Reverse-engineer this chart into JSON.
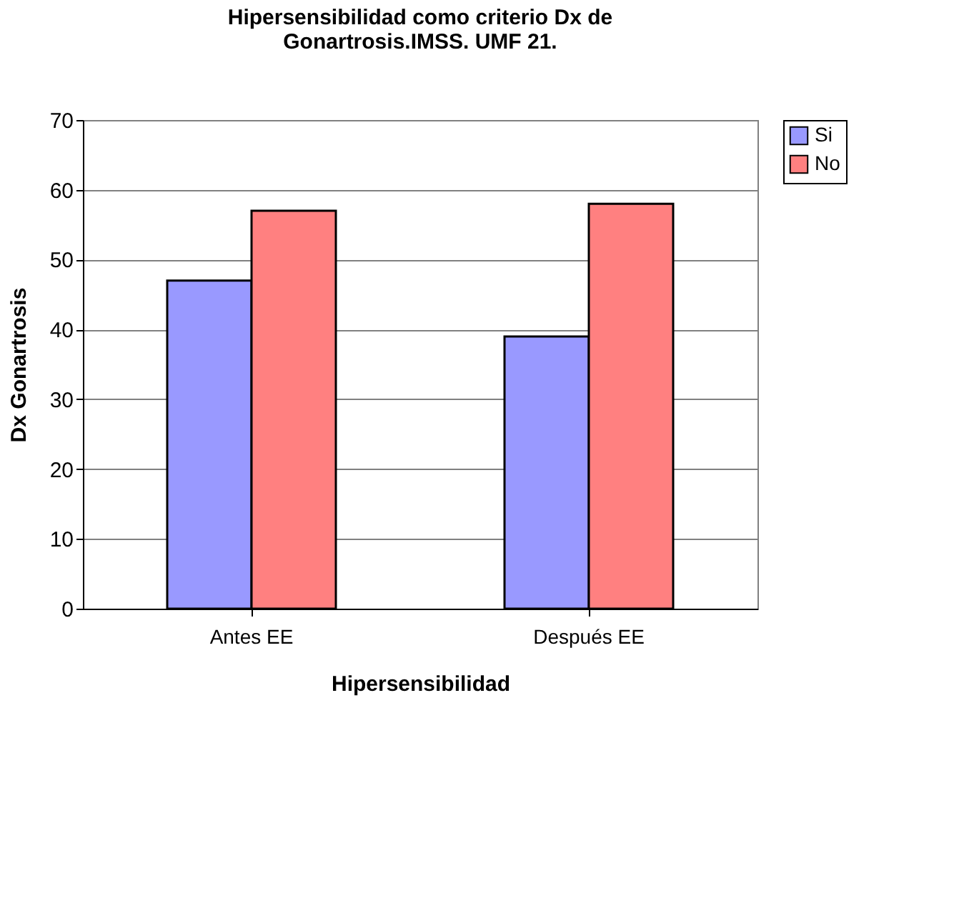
{
  "chart_data": {
    "type": "bar",
    "title": [
      "Hipersensibilidad como criterio Dx de",
      "Gonartrosis.IMSS. UMF 21."
    ],
    "xlabel": "Hipersensibilidad",
    "ylabel": "Dx Gonartrosis",
    "categories": [
      "Antes EE",
      "Después EE"
    ],
    "series": [
      {
        "name": "Si",
        "color": "#9999ff",
        "values": [
          47,
          39
        ]
      },
      {
        "name": "No",
        "color": "#ff8080",
        "values": [
          57,
          58
        ]
      }
    ],
    "ylim": [
      0,
      70
    ],
    "yticks": [
      0,
      10,
      20,
      30,
      40,
      50,
      60,
      70
    ],
    "grid": "y",
    "legend": "right"
  }
}
